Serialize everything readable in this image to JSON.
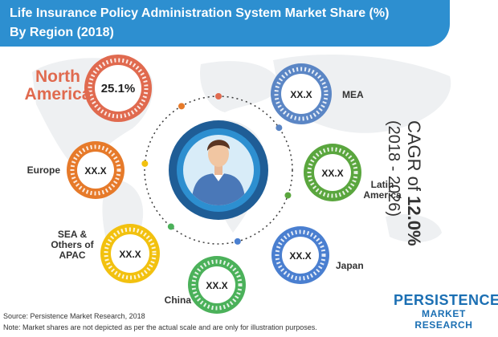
{
  "title": {
    "line1": "Life Insurance Policy Administration System Market Share (%)",
    "line2": "By Region (2018)"
  },
  "chart_data": {
    "type": "pie",
    "categories": [
      "North America",
      "MEA",
      "Latin America",
      "Japan",
      "China",
      "SEA & Others of APAC",
      "Europe"
    ],
    "values": [
      25.1,
      null,
      null,
      null,
      null,
      null,
      null
    ],
    "value_labels": [
      "25.1%",
      "XX.X",
      "XX.X",
      "XX.X",
      "XX.X",
      "XX.X",
      "XX.X"
    ],
    "region_label_lines": [
      [
        "North",
        "America"
      ],
      [
        "MEA"
      ],
      [
        "Latin",
        "America"
      ],
      [
        "Japan"
      ],
      [
        "China"
      ],
      [
        "SEA &",
        "Others of",
        "APAC"
      ],
      [
        "Europe"
      ]
    ],
    "colors": [
      "#e06a4f",
      "#5b86c5",
      "#5aa63e",
      "#4a7fd0",
      "#4bb15a",
      "#f2c10f",
      "#e67a2a"
    ],
    "center_colors": {
      "ring": "#1f5d96",
      "circle_outer": "#2d8fd0",
      "circle_inner": "#d8ecf8",
      "dotted_ring": "#3a3a3a"
    }
  },
  "cagr": {
    "prefix": "CAGR of ",
    "value": "12.0%",
    "period": "(2018 - 2026)"
  },
  "source": "Source: Persistence Market Research, 2018",
  "note": "Note: Market shares are not depicted as per the actual scale and are only for illustration purposes.",
  "logo": {
    "line1": "PERSISTENCE",
    "line2": "MARKET RESEARCH"
  }
}
